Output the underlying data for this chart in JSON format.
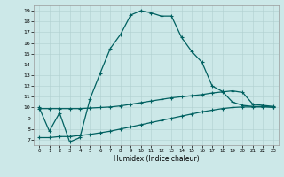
{
  "xlabel": "Humidex (Indice chaleur)",
  "bg_color": "#cce8e8",
  "grid_color": "#b0d0d0",
  "line_color": "#006060",
  "xlim": [
    -0.5,
    23.5
  ],
  "ylim": [
    6.5,
    19.5
  ],
  "xticks": [
    0,
    1,
    2,
    3,
    4,
    5,
    6,
    7,
    8,
    9,
    10,
    11,
    12,
    13,
    14,
    15,
    16,
    17,
    18,
    19,
    20,
    21,
    22,
    23
  ],
  "yticks": [
    7,
    8,
    9,
    10,
    11,
    12,
    13,
    14,
    15,
    16,
    17,
    18,
    19
  ],
  "line1_x": [
    0,
    1,
    2,
    3,
    4,
    5,
    6,
    7,
    8,
    9,
    10,
    11,
    12,
    13,
    14,
    15,
    16,
    17,
    18,
    19,
    20,
    21,
    22,
    23
  ],
  "line1_y": [
    10.0,
    7.8,
    9.5,
    6.8,
    7.2,
    10.8,
    13.2,
    15.5,
    16.8,
    18.6,
    19.0,
    18.8,
    18.5,
    18.5,
    16.5,
    15.2,
    14.2,
    12.0,
    11.5,
    10.5,
    10.2,
    10.1,
    10.1,
    10.0
  ],
  "line2_x": [
    0,
    1,
    2,
    3,
    4,
    5,
    6,
    7,
    8,
    9,
    10,
    11,
    12,
    13,
    14,
    15,
    16,
    17,
    18,
    19,
    20,
    21,
    22,
    23
  ],
  "line2_y": [
    9.9,
    9.9,
    9.9,
    9.9,
    9.9,
    9.95,
    10.0,
    10.05,
    10.15,
    10.3,
    10.45,
    10.6,
    10.75,
    10.9,
    11.0,
    11.1,
    11.2,
    11.35,
    11.45,
    11.55,
    11.4,
    10.3,
    10.2,
    10.1
  ],
  "line3_x": [
    0,
    1,
    2,
    3,
    4,
    5,
    6,
    7,
    8,
    9,
    10,
    11,
    12,
    13,
    14,
    15,
    16,
    17,
    18,
    19,
    20,
    21,
    22,
    23
  ],
  "line3_y": [
    7.2,
    7.2,
    7.3,
    7.3,
    7.4,
    7.5,
    7.65,
    7.8,
    8.0,
    8.2,
    8.4,
    8.6,
    8.8,
    9.0,
    9.2,
    9.4,
    9.6,
    9.75,
    9.9,
    10.0,
    10.05,
    10.05,
    10.05,
    10.05
  ]
}
